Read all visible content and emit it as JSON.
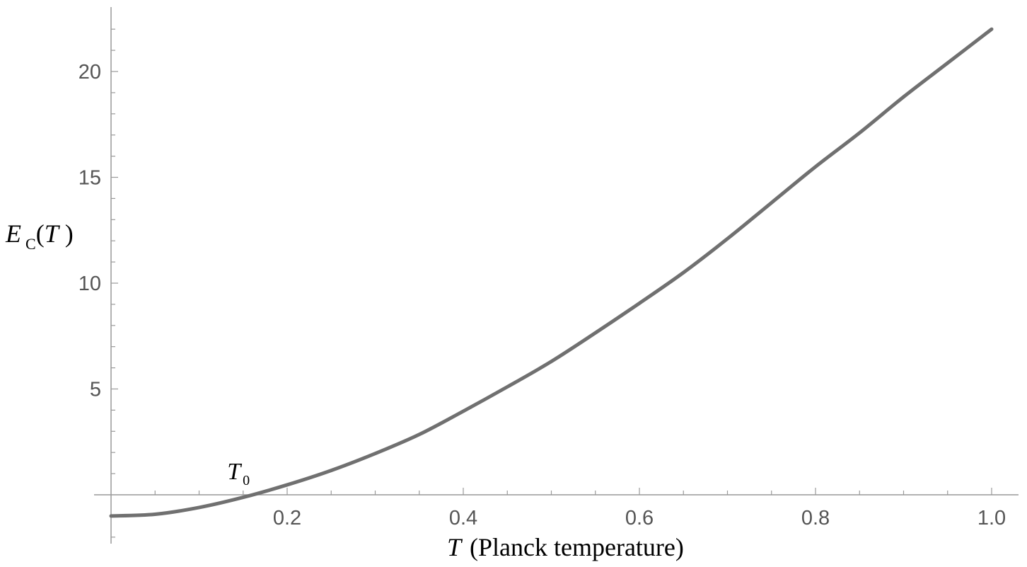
{
  "chart_data": {
    "type": "line",
    "title": "",
    "xlabel": {
      "symbol": "T",
      "text": "(Planck  temperature)"
    },
    "ylabel": {
      "symbol": "E",
      "subscript": "C",
      "argument_open": "(",
      "argument": "T",
      "argument_close": " )"
    },
    "xlim": [
      0,
      1.0
    ],
    "ylim": [
      -2.3,
      23
    ],
    "x_ticks": [
      {
        "value": 0.2,
        "label": "0.2"
      },
      {
        "value": 0.4,
        "label": "0.4"
      },
      {
        "value": 0.6,
        "label": "0.6"
      },
      {
        "value": 0.8,
        "label": "0.8"
      },
      {
        "value": 1.0,
        "label": "1.0"
      }
    ],
    "y_ticks": [
      {
        "value": 5,
        "label": "5"
      },
      {
        "value": 10,
        "label": "10"
      },
      {
        "value": 15,
        "label": "15"
      },
      {
        "value": 20,
        "label": "20"
      }
    ],
    "x_minor_step": 0.05,
    "y_minor_step": 1,
    "grid": false,
    "line_color": "#707070",
    "axis_color": "#999999",
    "series": [
      {
        "x": [
          0,
          0.05,
          0.1,
          0.15,
          0.2,
          0.25,
          0.3,
          0.35,
          0.4,
          0.45,
          0.5,
          0.55,
          0.6,
          0.65,
          0.7,
          0.75,
          0.8,
          0.85,
          0.9,
          0.95,
          1.0
        ],
        "values": [
          -1.0,
          -0.92,
          -0.6,
          -0.12,
          0.47,
          1.15,
          1.95,
          2.85,
          3.95,
          5.1,
          6.3,
          7.65,
          9.05,
          10.5,
          12.1,
          13.8,
          15.5,
          17.1,
          18.8,
          20.4,
          22.0
        ]
      }
    ],
    "annotations": [
      {
        "symbol": "T",
        "subscript": "0",
        "x": 0.16,
        "y": 0
      }
    ]
  }
}
